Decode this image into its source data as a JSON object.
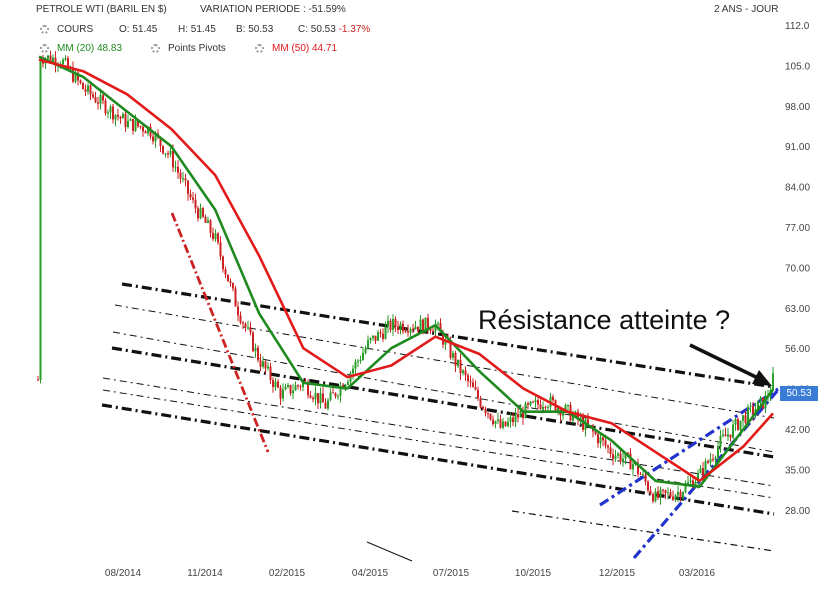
{
  "header": {
    "instrument": "PETROLE WTI (BARIL EN $)",
    "variation": "VARIATION PERIODE : -51.59%",
    "period": "2 ANS - JOUR",
    "cours_label": "COURS",
    "open": "O: 51.45",
    "high": "H: 51.45",
    "low": "B: 50.53",
    "close_prefix": "C: 50.53",
    "close_change": "-1.37%",
    "mm20": "MM (20) 48.83",
    "pivots": "Points Pivots",
    "mm50": "MM (50) 44.71"
  },
  "price_tag": "50.53",
  "annotation": "Résistance atteinte ?",
  "colors": {
    "up_candle": "#2a9d2a",
    "down_candle": "#cc2222",
    "mm20": "#1f8a1f",
    "mm50": "#e31a1a",
    "channel": "#111111",
    "blue_channel": "#2233cc",
    "price_tag_bg": "#3a7bd5"
  },
  "chart_data": {
    "type": "line",
    "title": "PETROLE WTI (BARIL EN $)",
    "xlabel": "",
    "ylabel": "",
    "x_ticks": [
      "08/2014",
      "11/2014",
      "02/2015",
      "04/2015",
      "07/2015",
      "10/2015",
      "12/2015",
      "03/2016"
    ],
    "y_ticks": [
      "112.0",
      "105.0",
      "98.00",
      "91.00",
      "84.00",
      "77.00",
      "70.00",
      "63.00",
      "56.00",
      "49.00",
      "42.00",
      "35.00",
      "28.00"
    ],
    "ylim": [
      24.5,
      112
    ],
    "grid": false,
    "series": [
      {
        "name": "COURS",
        "style": "candlestick",
        "x": [
          "2014-06-02",
          "2014-06-23",
          "2014-07-14",
          "2014-08-04",
          "2014-08-25",
          "2014-09-15",
          "2014-10-06",
          "2014-10-27",
          "2014-11-17",
          "2014-12-08",
          "2014-12-29",
          "2015-01-19",
          "2015-02-09",
          "2015-03-02",
          "2015-03-23",
          "2015-04-13",
          "2015-05-04",
          "2015-05-25",
          "2015-06-15",
          "2015-07-06",
          "2015-07-27",
          "2015-08-17",
          "2015-09-07",
          "2015-09-28",
          "2015-10-19",
          "2015-11-09",
          "2015-11-30",
          "2015-12-21",
          "2016-01-11",
          "2016-02-01",
          "2016-02-22",
          "2016-03-14",
          "2016-04-04",
          "2016-04-25",
          "2016-05-02"
        ],
        "values": [
          106.5,
          106,
          101,
          98,
          95,
          94,
          89,
          81,
          75,
          63,
          54,
          48,
          50,
          46,
          51,
          57,
          60,
          60,
          60,
          53,
          47,
          42,
          45,
          47,
          45,
          42,
          38,
          36,
          30,
          31,
          34,
          40,
          44,
          47,
          50.53
        ]
      },
      {
        "name": "MM (20)",
        "x": [
          "2014-06-02",
          "2014-07-14",
          "2014-08-25",
          "2014-10-06",
          "2014-11-17",
          "2014-12-29",
          "2015-02-09",
          "2015-03-23",
          "2015-05-04",
          "2015-06-15",
          "2015-07-27",
          "2015-09-07",
          "2015-10-19",
          "2015-11-30",
          "2016-01-11",
          "2016-02-22",
          "2016-04-04",
          "2016-05-02"
        ],
        "values": [
          106.5,
          103,
          97,
          91,
          80,
          62,
          50,
          49,
          56,
          60,
          52,
          45,
          45,
          40,
          33,
          32,
          42,
          48.83
        ]
      },
      {
        "name": "MM (50)",
        "x": [
          "2014-06-02",
          "2014-07-14",
          "2014-08-25",
          "2014-10-06",
          "2014-11-17",
          "2014-12-29",
          "2015-02-09",
          "2015-03-23",
          "2015-05-04",
          "2015-06-15",
          "2015-07-27",
          "2015-09-07",
          "2015-10-19",
          "2015-11-30",
          "2016-01-11",
          "2016-02-22",
          "2016-04-04",
          "2016-05-02"
        ],
        "values": [
          106,
          104,
          100,
          94,
          86,
          72,
          56,
          51,
          53,
          58,
          55,
          49,
          45,
          43,
          38,
          33,
          39,
          44.71
        ]
      }
    ]
  }
}
